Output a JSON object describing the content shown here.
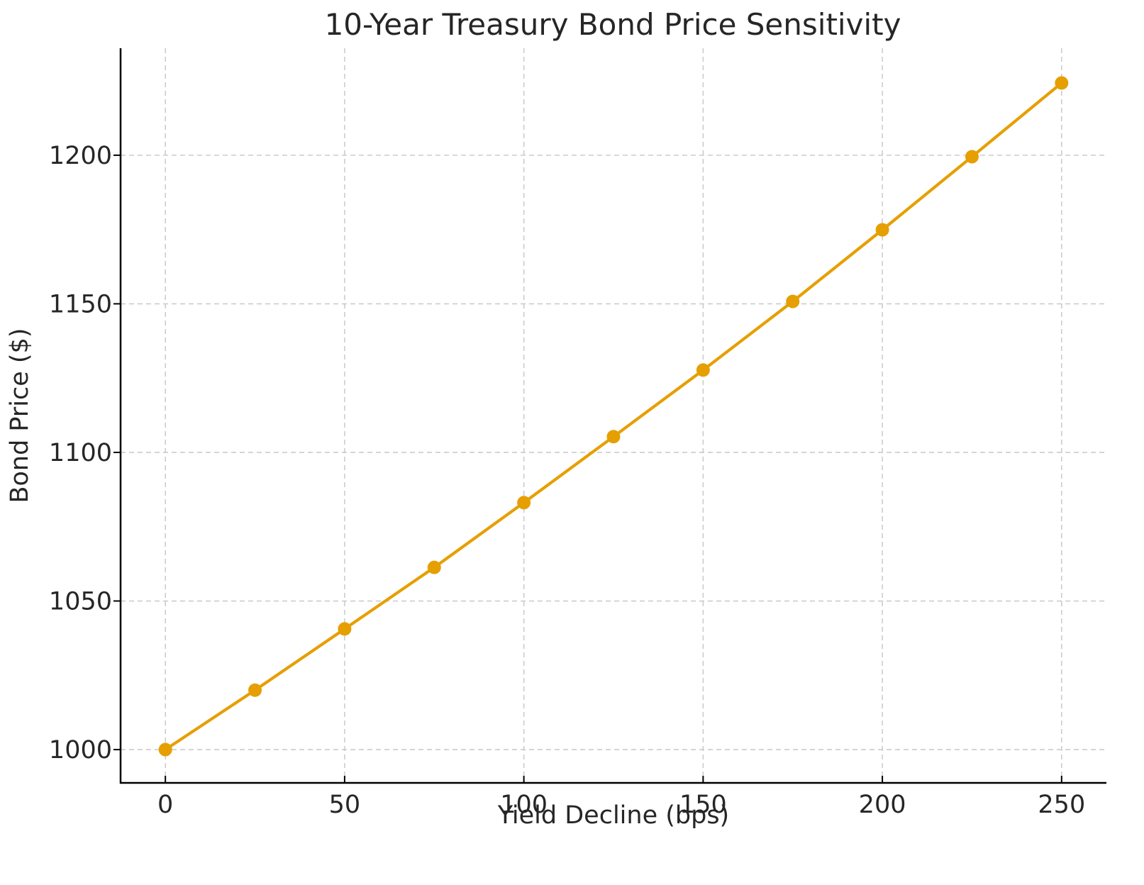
{
  "chart_data": {
    "type": "line",
    "title": "10-Year Treasury Bond Price Sensitivity",
    "xlabel": "Yield Decline (bps)",
    "ylabel": "Bond Price ($)",
    "x": [
      0,
      25,
      50,
      75,
      100,
      125,
      150,
      175,
      200,
      225,
      250
    ],
    "series": [
      {
        "name": "Bond Price",
        "values": [
          1000.0,
          1020.0,
          1040.6,
          1061.3,
          1083.1,
          1105.3,
          1127.7,
          1150.8,
          1174.9,
          1199.5,
          1224.3
        ],
        "color": "#e69f00",
        "marker": "circle"
      }
    ],
    "xticks": [
      0,
      50,
      100,
      150,
      200,
      250
    ],
    "yticks": [
      1000,
      1050,
      1100,
      1150,
      1200
    ],
    "xlim": [
      -12.5,
      262.5
    ],
    "ylim": [
      988.8,
      1236
    ],
    "grid": true,
    "grid_style": "dashed",
    "legend": null
  }
}
